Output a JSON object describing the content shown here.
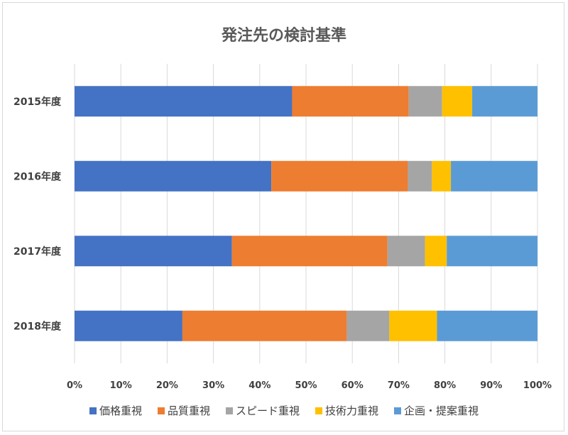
{
  "chart_data": {
    "type": "bar",
    "orientation": "horizontal",
    "stacked": "percent",
    "title": "発注先の検討基準",
    "categories": [
      "2015年度",
      "2016年度",
      "2017年度",
      "2018年度"
    ],
    "series": [
      {
        "name": "価格重視",
        "color": "#4472C4",
        "values": [
          47,
          42.5,
          34,
          23.3
        ]
      },
      {
        "name": "品質重視",
        "color": "#ED7D31",
        "values": [
          25.2,
          29.5,
          33.6,
          35.5
        ]
      },
      {
        "name": "スピード重視",
        "color": "#A5A5A5",
        "values": [
          7.2,
          5.2,
          8.1,
          9.2
        ]
      },
      {
        "name": "技術力重視",
        "color": "#FFC000",
        "values": [
          6.5,
          4.1,
          4.7,
          10.3
        ]
      },
      {
        "name": "企画・提案重視",
        "color": "#5B9BD5",
        "values": [
          14.1,
          18.7,
          19.6,
          21.7
        ]
      }
    ],
    "xlim": [
      0,
      100
    ],
    "x_ticks": [
      "0%",
      "10%",
      "20%",
      "30%",
      "40%",
      "50%",
      "60%",
      "70%",
      "80%",
      "90%",
      "100%"
    ],
    "grid": true,
    "legend_position": "bottom"
  }
}
